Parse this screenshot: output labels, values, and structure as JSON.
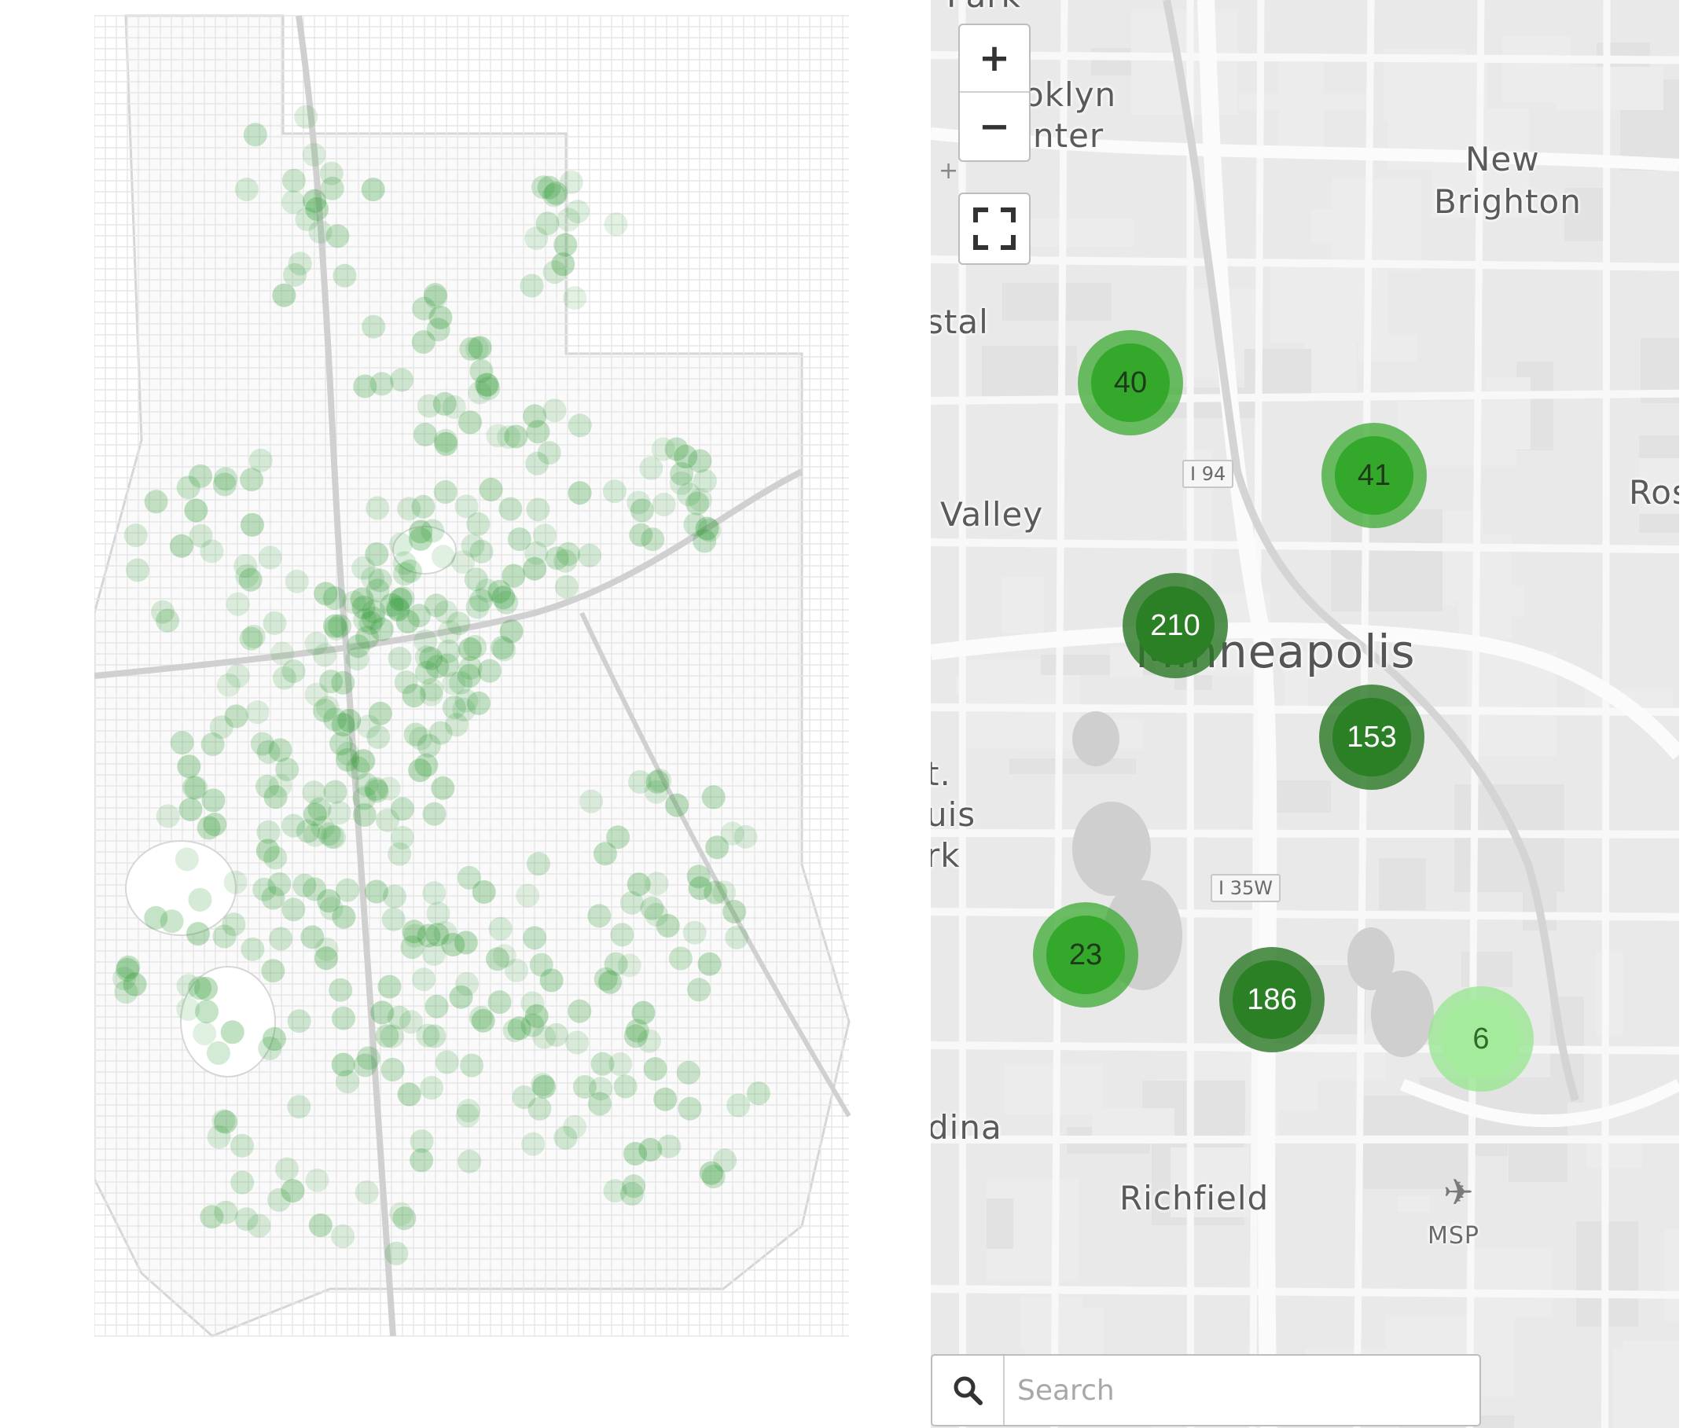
{
  "left_map": {
    "dot_color": "#2f9a35"
  },
  "right_map": {
    "labels": {
      "park": "Park",
      "brooklyn_center_1": "oklyn",
      "brooklyn_center_2": "nter",
      "new_brighton_1": "New",
      "new_brighton_2": "Brighton",
      "crystal": "stal",
      "valley": "Valley",
      "roseville": "Ros",
      "minneapolis": "Minneapolis",
      "st_louis_park_1": "t.",
      "st_louis_park_2": "uis",
      "st_louis_park_3": "rk",
      "edina": "dina",
      "richfield": "Richfield",
      "msp": "MSP"
    },
    "shields": {
      "i94": "I 94",
      "i35w": "I 35W"
    },
    "clusters": [
      {
        "count": "40",
        "style": "mid"
      },
      {
        "count": "41",
        "style": "mid"
      },
      {
        "count": "210",
        "style": "dark"
      },
      {
        "count": "153",
        "style": "dark"
      },
      {
        "count": "23",
        "style": "mid"
      },
      {
        "count": "186",
        "style": "dark"
      },
      {
        "count": "6",
        "style": "light"
      }
    ],
    "controls": {
      "zoom_in": "+",
      "zoom_out": "−",
      "fullscreen_icon": "fullscreen-icon"
    },
    "search": {
      "placeholder": "Search",
      "icon": "search-icon"
    },
    "colors": {
      "cluster_mid": "#34a82a",
      "cluster_dark": "#2b7f25",
      "cluster_light": "#a5eb9c",
      "background": "#e9e9e9"
    }
  }
}
